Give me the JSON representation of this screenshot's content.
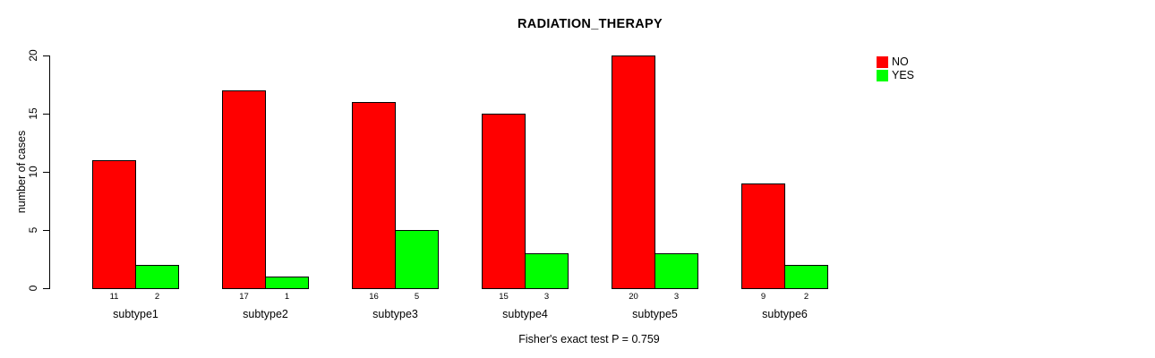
{
  "chart_data": {
    "type": "bar",
    "title": "RADIATION_THERAPY",
    "ylabel": "number of cases",
    "xlabel": "",
    "categories": [
      "subtype1",
      "subtype2",
      "subtype3",
      "subtype4",
      "subtype5",
      "subtype6"
    ],
    "series": [
      {
        "name": "NO",
        "color": "#ff0000",
        "values": [
          11,
          17,
          16,
          15,
          20,
          9
        ]
      },
      {
        "name": "YES",
        "color": "#00ff00",
        "values": [
          2,
          1,
          5,
          3,
          3,
          2
        ]
      }
    ],
    "bar_count_labels": {
      "NO": [
        11,
        17,
        16,
        15,
        20,
        9
      ],
      "YES": [
        2,
        1,
        5,
        3,
        3,
        2
      ]
    },
    "yticks": [
      0,
      5,
      10,
      15,
      20
    ],
    "ylim": [
      0,
      20
    ],
    "grid": false,
    "legend_position": "top-right",
    "annotation": "Fisher's exact test P = 0.759"
  }
}
